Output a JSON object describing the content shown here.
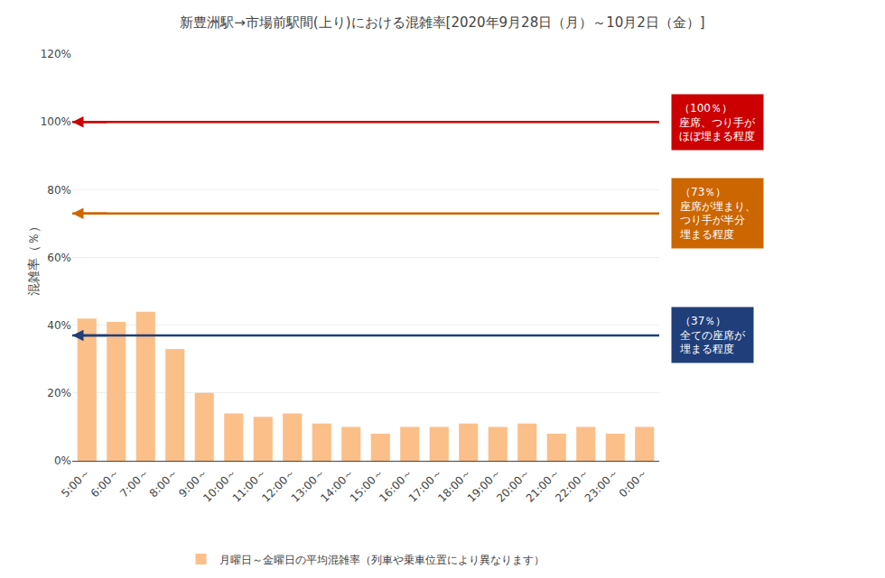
{
  "chart_data": {
    "type": "bar",
    "title": "新豊洲駅→市場前駅間(上り)における混雑率[2020年9月28日（月）～10月2日（金）]",
    "categories": [
      "5:00～",
      "6:00～",
      "7:00～",
      "8:00～",
      "9:00～",
      "10:00～",
      "11:00～",
      "12:00～",
      "13:00～",
      "14:00～",
      "15:00～",
      "16:00～",
      "17:00～",
      "18:00～",
      "19:00～",
      "20:00～",
      "21:00～",
      "22:00～",
      "23:00～",
      "0:00～"
    ],
    "series": [
      {
        "name": "月曜日～金曜日の平均混雑率（列車や乗車位置により異なります）",
        "color": "#FBBF8A",
        "values": [
          42,
          41,
          44,
          33,
          20,
          14,
          13,
          14,
          11,
          10,
          8,
          10,
          10,
          11,
          10,
          11,
          8,
          10,
          8,
          10
        ]
      }
    ],
    "ylabel": "混雑率（％）",
    "ylim": [
      0,
      120
    ],
    "yticks": [
      {
        "value": 0,
        "label": "0%"
      },
      {
        "value": 20,
        "label": "20%"
      },
      {
        "value": 40,
        "label": "40%"
      },
      {
        "value": 60,
        "label": "60%"
      },
      {
        "value": 80,
        "label": "80%"
      },
      {
        "value": 100,
        "label": "100%"
      },
      {
        "value": 120,
        "label": "120%"
      }
    ],
    "grid": true,
    "legend": "bottom",
    "reference_lines": [
      {
        "value": 100,
        "color": "#CC0000",
        "label": "（100％）\n座席、つり手が\nほぼ埋まる程度"
      },
      {
        "value": 73,
        "color": "#CC6600",
        "label": "（73％）\n座席が埋まり、\nつり手が半分\n埋まる程度"
      },
      {
        "value": 37,
        "color": "#1F3E7A",
        "label": "（37％）\n全ての座席が\n埋まる程度"
      }
    ]
  }
}
